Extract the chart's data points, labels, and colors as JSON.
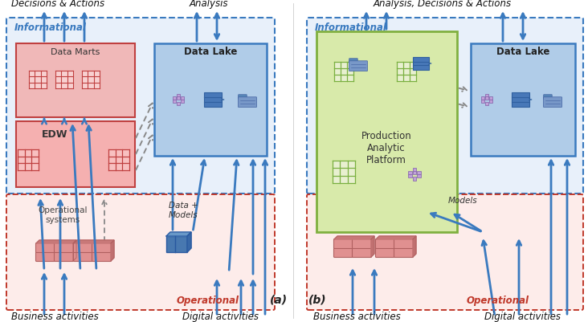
{
  "bg_color": "#ffffff",
  "blue": "#3a7abf",
  "gray": "#888888",
  "info_color": "#3a7abf",
  "oper_color": "#c0392b",
  "dm_fill": "#f0b8b8",
  "dm_edge": "#c04040",
  "edw_fill": "#f0b0b0",
  "edw_edge": "#c04040",
  "dl_fill": "#b0cce8",
  "dl_edge": "#3a7abf",
  "info_fill": "#e8f0fa",
  "oper_fill": "#fdecea",
  "pap_fill": "#d8eaaa",
  "pap_edge": "#80b040",
  "brick_fill": "#e09090",
  "brick_edge": "#b06060",
  "decisions_a": "Decisions & Actions",
  "analysis_a": "Analysis",
  "decisions_b": "Analysis, Decisions & Actions",
  "informational": "Informational",
  "operational": "Operational",
  "data_marts": "Data Marts",
  "edw": "EDW",
  "data_lake": "Data Lake",
  "op_systems": "Operational\nsystems",
  "data_models": "Data +\nModels",
  "models": "Models",
  "pap": "Production\nAnalytic\nPlatform",
  "biz_act": "Business activities",
  "dig_act": "Digital activities",
  "label_a": "(a)",
  "label_b": "(b)"
}
